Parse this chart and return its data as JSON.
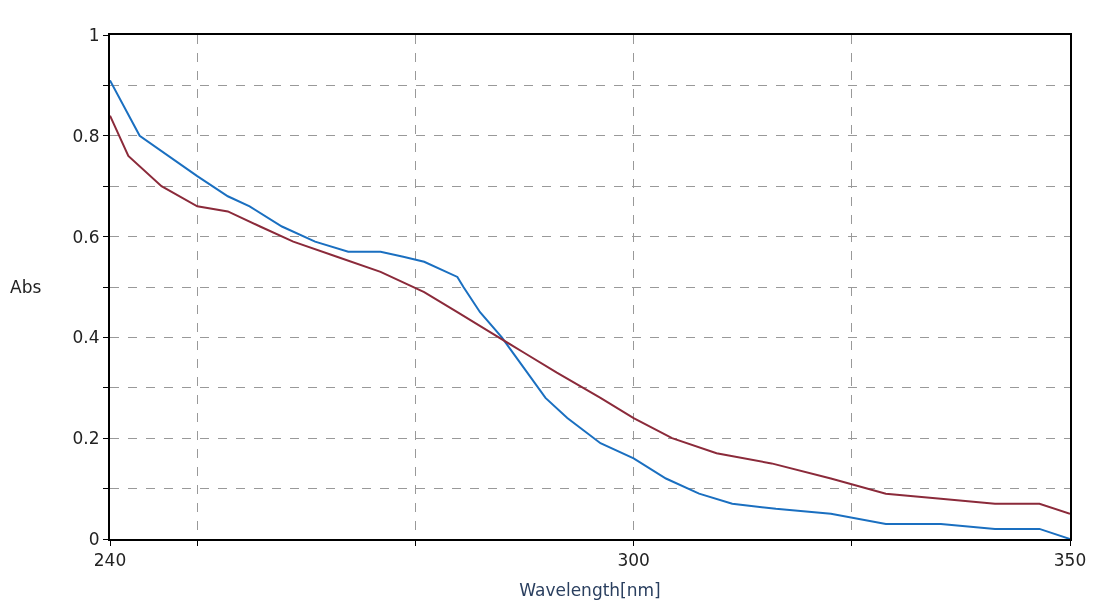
{
  "chart_data": {
    "type": "line",
    "xlabel": "Wavelength[nm]",
    "ylabel": "Abs",
    "xlim": [
      240,
      350
    ],
    "xticks": [
      240,
      {
        "value": 250,
        "label": null
      },
      {
        "value": 275,
        "label": null
      },
      300,
      {
        "value": 325,
        "label": null
      },
      350
    ],
    "ylim": [
      0,
      1
    ],
    "yticks": [
      0,
      {
        "value": 0.1,
        "label": null
      },
      0.2,
      {
        "value": 0.3,
        "label": null
      },
      0.4,
      {
        "value": 0.5,
        "label": null
      },
      0.6,
      {
        "value": 0.7,
        "label": null
      },
      0.8,
      {
        "value": 0.9,
        "label": null
      },
      1
    ],
    "grid": true,
    "line_style": "solid",
    "marker": "none",
    "series": [
      {
        "color": "#1a6fc0",
        "x": [
          240,
          243.4,
          250,
          253.5,
          256,
          259.7,
          263.5,
          267.3,
          271,
          273.6,
          276,
          279.8,
          280.5,
          282.4,
          284.9,
          287.4,
          289.9,
          292.4,
          296.2,
          300,
          303.7,
          307.5,
          311.3,
          316.3,
          322.6,
          328.9,
          335.2,
          341.4,
          346.5,
          350
        ],
        "values": [
          0.91,
          0.8,
          0.72,
          0.68,
          0.66,
          0.62,
          0.59,
          0.57,
          0.57,
          0.56,
          0.55,
          0.52,
          0.5,
          0.45,
          0.4,
          0.34,
          0.28,
          0.24,
          0.19,
          0.16,
          0.12,
          0.09,
          0.07,
          0.06,
          0.05,
          0.03,
          0.03,
          0.02,
          0.02,
          0.0
        ]
      },
      {
        "color": "#8b2a3a",
        "x": [
          240,
          242.1,
          245.9,
          250,
          253.5,
          257.2,
          261,
          266,
          271,
          276,
          279.8,
          283.6,
          287.4,
          291.2,
          296.2,
          300,
          304.4,
          309.5,
          315.8,
          322.6,
          328.9,
          335.2,
          341.4,
          346.5,
          350
        ],
        "values": [
          0.84,
          0.76,
          0.7,
          0.66,
          0.65,
          0.62,
          0.59,
          0.56,
          0.53,
          0.49,
          0.45,
          0.41,
          0.37,
          0.33,
          0.28,
          0.24,
          0.2,
          0.17,
          0.15,
          0.12,
          0.09,
          0.08,
          0.07,
          0.07,
          0.05
        ]
      }
    ]
  }
}
